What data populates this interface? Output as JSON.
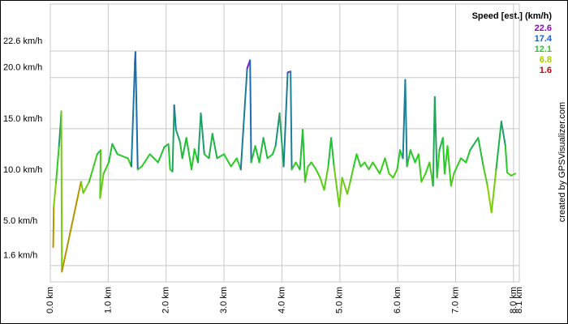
{
  "chart_data": {
    "type": "line",
    "x_unit_ticks": null,
    "x": [
      0.05,
      0.06,
      0.1,
      0.15,
      0.18,
      0.19,
      0.2,
      0.53,
      0.57,
      0.67,
      0.81,
      0.87,
      0.86,
      0.92,
      1.01,
      1.07,
      1.16,
      1.34,
      1.4,
      1.46,
      1.47,
      1.51,
      1.58,
      1.72,
      1.86,
      1.97,
      2.04,
      2.07,
      2.11,
      2.14,
      2.17,
      2.24,
      2.28,
      2.35,
      2.44,
      2.49,
      2.55,
      2.6,
      2.66,
      2.74,
      2.8,
      2.88,
      3.0,
      3.12,
      3.22,
      3.29,
      3.4,
      3.45,
      3.47,
      3.54,
      3.61,
      3.68,
      3.75,
      3.84,
      3.89,
      3.96,
      4.03,
      4.1,
      4.15,
      4.17,
      4.24,
      4.31,
      4.36,
      4.4,
      4.45,
      4.51,
      4.59,
      4.66,
      4.73,
      4.8,
      4.85,
      4.9,
      4.99,
      5.04,
      5.13,
      5.18,
      5.24,
      5.29,
      5.36,
      5.43,
      5.5,
      5.57,
      5.69,
      5.78,
      5.85,
      5.92,
      5.99,
      6.04,
      6.09,
      6.13,
      6.16,
      6.22,
      6.3,
      6.36,
      6.41,
      6.48,
      6.55,
      6.61,
      6.64,
      6.68,
      6.72,
      6.78,
      6.81,
      6.86,
      6.92,
      6.97,
      7.09,
      7.18,
      7.25,
      7.39,
      7.48,
      7.55,
      7.62,
      7.7,
      7.79,
      7.86,
      7.89,
      7.96,
      8.03
    ],
    "values": [
      3.4,
      7.4,
      9.8,
      13.3,
      15.7,
      16.7,
      1.0,
      9.8,
      8.7,
      9.8,
      12.5,
      12.9,
      8.2,
      10.6,
      11.7,
      13.5,
      12.5,
      12.1,
      11.3,
      21.3,
      22.5,
      11.0,
      11.3,
      12.5,
      11.7,
      13.2,
      13.5,
      11.0,
      10.8,
      17.3,
      14.9,
      13.7,
      12.1,
      14.1,
      11.0,
      13.0,
      11.7,
      16.5,
      12.5,
      12.1,
      14.5,
      12.1,
      12.5,
      11.3,
      12.1,
      11.0,
      20.9,
      21.7,
      11.7,
      13.3,
      11.7,
      14.1,
      12.1,
      12.5,
      13.3,
      16.5,
      11.3,
      20.5,
      20.6,
      11.0,
      11.7,
      11.0,
      14.9,
      9.8,
      11.3,
      11.7,
      11.0,
      10.2,
      9.0,
      11.3,
      14.1,
      11.3,
      7.4,
      10.2,
      8.6,
      9.8,
      11.3,
      12.5,
      11.3,
      11.7,
      11.0,
      11.7,
      10.6,
      12.1,
      10.6,
      10.2,
      11.0,
      12.9,
      12.1,
      19.8,
      11.3,
      12.9,
      11.7,
      12.5,
      9.8,
      10.6,
      11.7,
      9.4,
      18.1,
      10.2,
      12.9,
      14.1,
      10.6,
      13.3,
      9.4,
      10.6,
      12.1,
      11.7,
      12.9,
      14.1,
      11.3,
      9.4,
      6.8,
      11.0,
      15.7,
      13.3,
      10.7,
      10.4,
      10.6
    ],
    "xlim": [
      0,
      8.1
    ],
    "ylim": [
      0,
      27.2
    ],
    "xticks": [
      {
        "value": 0,
        "label": "0.0 km"
      },
      {
        "value": 1,
        "label": "1.0 km"
      },
      {
        "value": 2,
        "label": "2.0 km"
      },
      {
        "value": 3,
        "label": "3.0 km"
      },
      {
        "value": 4,
        "label": "4.0 km"
      },
      {
        "value": 5,
        "label": "5.0 km"
      },
      {
        "value": 6,
        "label": "6.0 km"
      },
      {
        "value": 7,
        "label": "7.0 km"
      },
      {
        "value": 8,
        "label": "8.0 km"
      },
      {
        "value": 8.1,
        "label": "8.1 km"
      }
    ],
    "yticks": [
      {
        "value": 1.6,
        "label": "1.6 km/h"
      },
      {
        "value": 5,
        "label": "5.0 km/h"
      },
      {
        "value": 10,
        "label": "10.0 km/h"
      },
      {
        "value": 15,
        "label": "15.0 km/h"
      },
      {
        "value": 20,
        "label": "20.0 km/h"
      },
      {
        "value": 22.6,
        "label": "22.6 km/h"
      }
    ],
    "grid": true,
    "legend_title": "Speed [est.] (km/h)",
    "color_scale": [
      {
        "value": 22.6,
        "color": "#9900cc"
      },
      {
        "value": 17.4,
        "color": "#1a5fc8"
      },
      {
        "value": 12.1,
        "color": "#22cc22"
      },
      {
        "value": 6.8,
        "color": "#aacc00"
      },
      {
        "value": 1.6,
        "color": "#cc0000"
      }
    ],
    "credit": "created by GPSVisualizer.com"
  }
}
